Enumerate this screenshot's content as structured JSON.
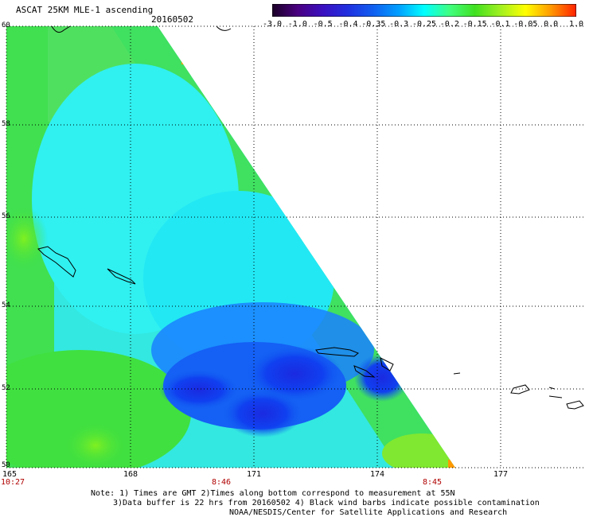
{
  "header": {
    "title": "ASCAT 25KM MLE-1 ascending",
    "date": "20160502"
  },
  "colorbar": {
    "labels": [
      "-3.0",
      "-1.0",
      "-0.5",
      "-0.4",
      "-0.35",
      "-0.3",
      "-0.25",
      "-0.2",
      "-0.15",
      "-0.1",
      "-0.05",
      "0.0",
      "1.0"
    ],
    "colors": [
      "#1a0026",
      "#4a0080",
      "#3a10c0",
      "#2030e0",
      "#1060f0",
      "#00a0ff",
      "#00ffff",
      "#40ff80",
      "#40e020",
      "#a0f020",
      "#ffff00",
      "#ff9900",
      "#ff2000"
    ]
  },
  "map": {
    "lat_labels": [
      "60",
      "58",
      "56",
      "54",
      "52",
      "50"
    ],
    "lon_labels": [
      "165",
      "168",
      "171",
      "174",
      "177"
    ],
    "time_labels": [
      "10:27",
      "8:46",
      "8:45"
    ]
  },
  "notes": {
    "line1": "Note: 1) Times are GMT 2)Times along bottom correspond to measurement at 55N",
    "line2": "3)Data buffer is 22 hrs from 20160502 4) Black wind barbs indicate possible contamination",
    "line3": "NOAA/NESDIS/Center for Satellite Applications and Research"
  }
}
